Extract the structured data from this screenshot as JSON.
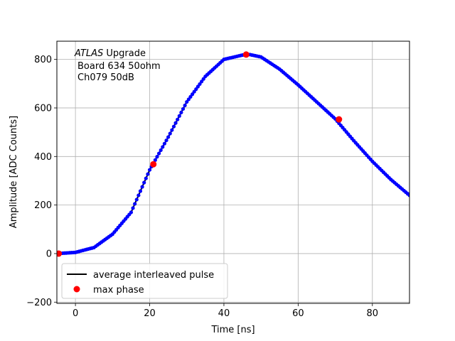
{
  "chart_data": {
    "type": "scatter",
    "xlabel": "Time [ns]",
    "ylabel": "Amplitude [ADC Counts]",
    "xlim": [
      -5,
      90
    ],
    "ylim": [
      -205,
      875
    ],
    "x_ticks": [
      0,
      20,
      40,
      60,
      80
    ],
    "y_ticks": [
      -200,
      0,
      200,
      400,
      600,
      800
    ],
    "grid": true,
    "legend_position": "lower-left",
    "annotation": {
      "experiment": "ATLAS",
      "experiment_suffix": " Upgrade",
      "line2": "Board 634 50ohm",
      "line3": "Ch079 50dB"
    },
    "series": [
      {
        "name": "average interleaved pulse",
        "kind": "line",
        "color": "#000000",
        "x": [
          -5,
          0,
          5,
          10,
          15,
          20,
          25,
          30,
          35,
          40,
          45,
          47,
          50,
          55,
          60,
          65,
          70,
          75,
          80,
          85,
          90
        ],
        "y": [
          0,
          5,
          25,
          80,
          170,
          345,
          480,
          625,
          730,
          800,
          818,
          820,
          810,
          760,
          695,
          625,
          555,
          465,
          380,
          305,
          240
        ]
      },
      {
        "name": "",
        "kind": "markers",
        "color": "#0000ff",
        "x": [
          -5,
          0,
          5,
          10,
          15,
          20,
          25,
          30,
          35,
          40,
          45,
          47,
          50,
          55,
          60,
          65,
          70,
          75,
          80,
          85,
          90
        ],
        "y": [
          0,
          5,
          25,
          80,
          170,
          345,
          480,
          625,
          730,
          800,
          818,
          820,
          810,
          760,
          695,
          625,
          555,
          465,
          380,
          305,
          240
        ]
      },
      {
        "name": "max phase",
        "kind": "points",
        "color": "#ff0000",
        "x": [
          -4.5,
          21,
          46,
          71
        ],
        "y": [
          0,
          368,
          820,
          553
        ]
      }
    ]
  }
}
